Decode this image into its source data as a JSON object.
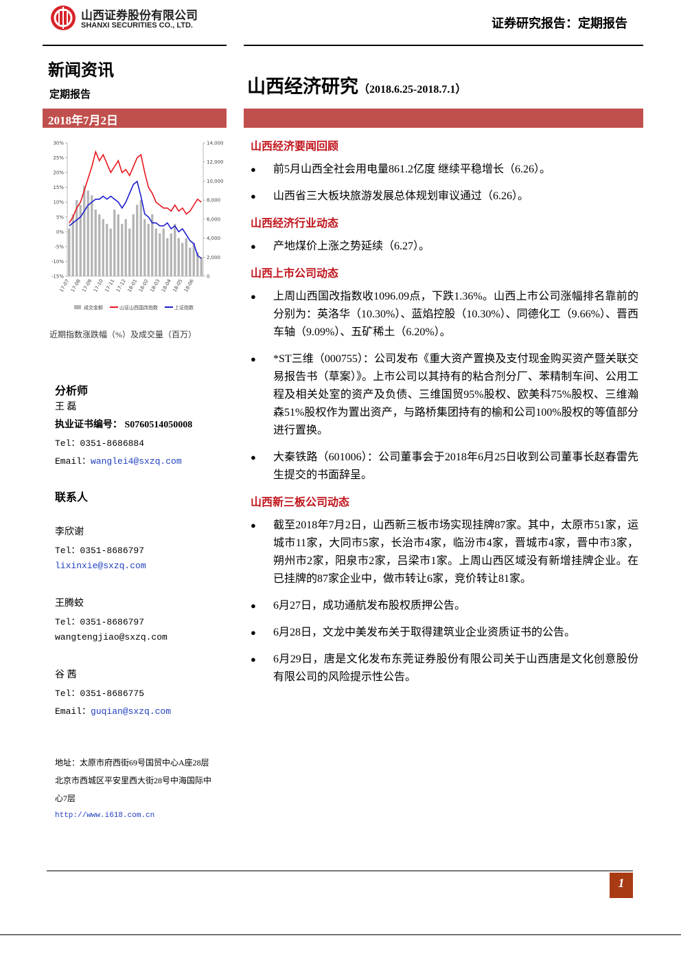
{
  "header": {
    "company_cn": "山西证券股份有限公司",
    "company_en": "SHANXI SECURITIES CO., LTD.",
    "report_type": "证券研究报告：定期报告"
  },
  "left": {
    "section": "新闻资讯",
    "subtitle": "定期报告",
    "date": "2018年7月2日"
  },
  "title": {
    "main": "山西经济研究",
    "range": "（2018.6.25-2018.7.1）"
  },
  "chart_data": {
    "type": "bar-line",
    "caption": "近期指数涨跌幅（%）及成交量（百万）",
    "categories": [
      "17-07",
      null,
      null,
      "17-08",
      null,
      null,
      "17-09",
      null,
      null,
      "17-10",
      null,
      null,
      "17-11",
      null,
      null,
      "17-12",
      null,
      null,
      "18-01",
      null,
      null,
      "18-02",
      null,
      null,
      "18-03",
      null,
      null,
      "18-04",
      null,
      null,
      "18-05",
      null,
      null,
      "18-06",
      null,
      null
    ],
    "series": [
      {
        "name": "成交金额",
        "color": "#b4b4b4",
        "axis": "y2",
        "values": [
          5000,
          6500,
          8000,
          7500,
          9500,
          9000,
          8500,
          7000,
          6500,
          6000,
          5500,
          5000,
          7000,
          6500,
          5500,
          6000,
          5000,
          6500,
          7500,
          8000,
          6000,
          5500,
          6500,
          5000,
          4500,
          5000,
          4000,
          4500,
          5500,
          4000,
          3500,
          4000,
          3000,
          3500,
          2500,
          2000
        ]
      },
      {
        "name": "山证山西国改指数",
        "color": "#e8141b",
        "values": [
          3,
          5,
          8,
          10,
          14,
          18,
          22,
          27,
          24,
          26,
          23,
          20,
          22,
          24,
          20,
          21,
          19,
          22,
          25,
          26,
          20,
          15,
          13,
          10,
          9,
          8,
          8,
          7,
          9,
          7,
          8,
          6,
          7,
          9,
          11,
          10
        ]
      },
      {
        "name": "上证指数",
        "color": "#1c1ccc",
        "values": [
          2,
          3,
          4,
          5,
          7,
          9,
          10,
          11,
          11,
          12,
          11,
          12,
          11,
          10,
          8,
          10,
          13,
          16,
          17,
          12,
          6,
          5,
          3,
          3,
          2,
          2,
          3,
          1,
          2,
          0,
          1,
          -1,
          -3,
          -4,
          -8,
          -9
        ]
      }
    ],
    "ylim": [
      -15,
      30
    ],
    "yticks": [
      {
        "value": -15,
        "label": "-15%"
      },
      {
        "value": -10,
        "label": "-10%"
      },
      {
        "value": -5,
        "label": "-5%"
      },
      {
        "value": 0,
        "label": "0%"
      },
      {
        "value": 5,
        "label": "5%"
      },
      {
        "value": 10,
        "label": "10%"
      },
      {
        "value": 15,
        "label": "15%"
      },
      {
        "value": 20,
        "label": "20%"
      },
      {
        "value": 25,
        "label": "25%"
      },
      {
        "value": 30,
        "label": "30%"
      }
    ],
    "y2lim": [
      0,
      14000
    ],
    "y2ticks": [
      0,
      {
        "value": 2000,
        "label": "2,000"
      },
      {
        "value": 4000,
        "label": "4,000"
      },
      {
        "value": 6000,
        "label": "6,000"
      },
      {
        "value": 8000,
        "label": "8,000"
      },
      {
        "value": 10000,
        "label": "10,000"
      },
      {
        "value": 12000,
        "label": "12,000"
      },
      {
        "value": 14000,
        "label": "14,000"
      }
    ]
  },
  "sidebar": {
    "analyst_heading": "分析师",
    "analyst_name": "王 磊",
    "cert_label": "执业证书编号：",
    "cert_no": "S0760514050008",
    "tel": "Tel：0351-8686884",
    "email_label": "Email：",
    "email": "wanglei4@sxzq.com",
    "contacts_heading": "联系人",
    "contacts": [
      {
        "name": "李欣谢",
        "tel": "Tel：0351-8686797",
        "email": "lixinxie@sxzq.com"
      },
      {
        "name": "王腾蛟",
        "tel": "Tel：0351-8686797",
        "email": "wangtengjiao@sxzq.com"
      },
      {
        "name": "谷 茜",
        "tel": "Tel：0351-8686775",
        "email_label": "Email：",
        "email": "guqian@sxzq.com"
      }
    ],
    "address": [
      "地址：太原市府西街69号国贸中心A座28层",
      "北京市西城区平安里西大街28号中海国际中",
      "心7层"
    ],
    "url": "http://www.i618.com.cn"
  },
  "sections": [
    {
      "heading": "山西经济要闻回顾",
      "bullets": [
        "前5月山西全社会用电量861.2亿度 继续平稳增长（6.26）。",
        "山西省三大板块旅游发展总体规划审议通过（6.26）。"
      ]
    },
    {
      "heading": "山西经济行业动态",
      "bullets": [
        "产地煤价上涨之势延续（6.27）。"
      ]
    },
    {
      "heading": "山西上市公司动态",
      "bullets": [
        "上周山西国改指数收1096.09点，下跌1.36%。山西上市公司涨幅排名靠前的分别为：英洛华（10.30%）、蓝焰控股（10.30%）、同德化工（9.66%）、晋西车轴（9.09%）、五矿稀土（6.20%）。",
        "*ST三维（000755）：公司发布《重大资产置换及支付现金购买资产暨关联交易报告书（草案）》。上市公司以其持有的粘合剂分厂、苯精制车间、公用工程及相关处室的资产及负债、三维国贸95%股权、欧美科75%股权、三维瀚森51%股权作为置出资产，与路桥集团持有的榆和公司100%股权的等值部分进行置换。",
        "大秦铁路（601006）：公司董事会于2018年6月25日收到公司董事长赵春雷先生提交的书面辞呈。"
      ]
    },
    {
      "heading": "山西新三板公司动态",
      "bullets": [
        "截至2018年7月2日，山西新三板市场实现挂牌87家。其中，太原市51家，运城市11家，大同市5家，长治市4家，临汾市4家，晋城市4家，晋中市3家，朔州市2家，阳泉市2家，吕梁市1家。上周山西区域没有新增挂牌企业。在已挂牌的87家企业中，做市转让6家，竞价转让81家。",
        "6月27日，成功通航发布股权质押公告。",
        "6月28日，文龙中美发布关于取得建筑业企业资质证书的公告。",
        "6月29日，唐是文化发布东莞证券股份有限公司关于山西唐是文化创意股份有限公司的风险提示性公告。"
      ]
    }
  ],
  "footer": {
    "page": "1"
  }
}
